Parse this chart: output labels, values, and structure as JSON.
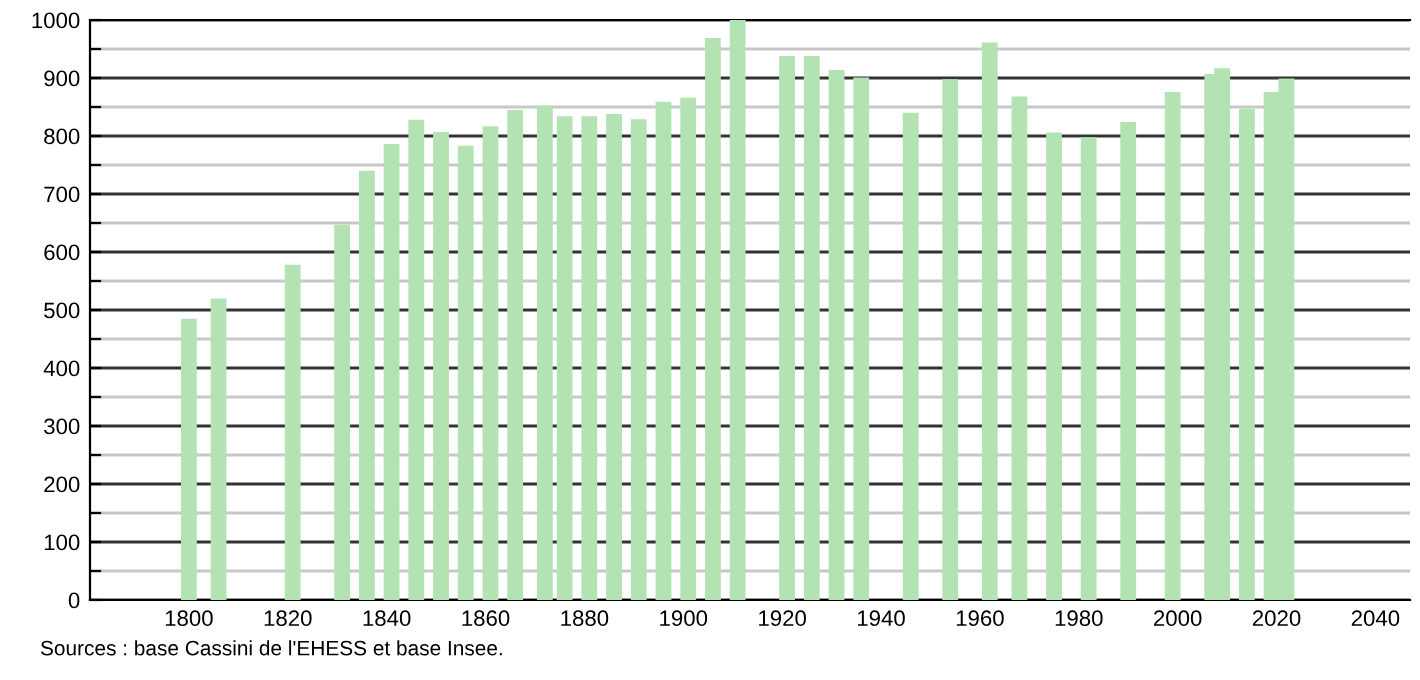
{
  "chart_data": {
    "type": "bar",
    "x": [
      1800,
      1806,
      1821,
      1831,
      1836,
      1841,
      1846,
      1851,
      1856,
      1861,
      1866,
      1872,
      1876,
      1881,
      1886,
      1891,
      1896,
      1901,
      1906,
      1911,
      1921,
      1926,
      1931,
      1936,
      1946,
      1954,
      1962,
      1968,
      1975,
      1982,
      1990,
      1999,
      2007,
      2009,
      2014,
      2019,
      2022
    ],
    "values": [
      485,
      520,
      578,
      647,
      740,
      786,
      828,
      807,
      783,
      817,
      845,
      852,
      834,
      834,
      838,
      829,
      859,
      866,
      969,
      1000,
      938,
      938,
      914,
      901,
      840,
      898,
      961,
      868,
      806,
      798,
      824,
      876,
      907,
      917,
      847,
      876,
      899
    ],
    "color": "#b3e3b3",
    "xlim": [
      1780,
      2047
    ],
    "xticks": [
      1800,
      1820,
      1840,
      1860,
      1880,
      1900,
      1920,
      1940,
      1960,
      1980,
      2000,
      2020,
      2040
    ],
    "ylim": [
      0,
      1000
    ],
    "yticks": [
      0,
      {
        "value": 50,
        "label": null
      },
      100,
      {
        "value": 150,
        "label": null
      },
      200,
      {
        "value": 250,
        "label": null
      },
      300,
      {
        "value": 350,
        "label": null
      },
      400,
      {
        "value": 450,
        "label": null
      },
      500,
      {
        "value": 550,
        "label": null
      },
      600,
      {
        "value": 650,
        "label": null
      },
      700,
      {
        "value": 750,
        "label": null
      },
      800,
      {
        "value": 850,
        "label": null
      },
      900,
      {
        "value": 950,
        "label": null
      },
      1000
    ],
    "grid": "y",
    "annotations": [
      "Sources : base Cassini de l'EHESS et base Insee."
    ]
  }
}
